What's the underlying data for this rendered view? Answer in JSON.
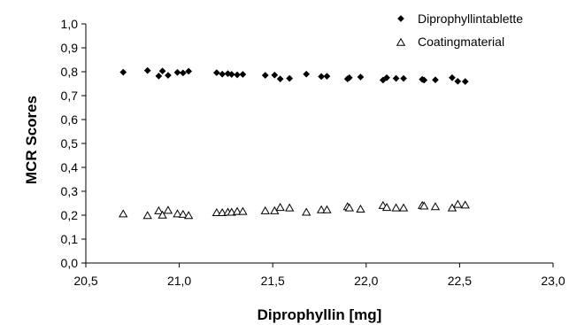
{
  "chart_data": {
    "type": "scatter",
    "xlabel": "Diprophyllin [mg]",
    "ylabel": "MCR Scores",
    "xlim": [
      20.5,
      23.0
    ],
    "ylim": [
      0.0,
      1.0
    ],
    "x_ticks": [
      "20,5",
      "21,0",
      "21,5",
      "22,0",
      "22,5",
      "23,0"
    ],
    "y_ticks": [
      "0,0",
      "0,1",
      "0,2",
      "0,3",
      "0,4",
      "0,5",
      "0,6",
      "0,7",
      "0,8",
      "0,9",
      "1,0"
    ],
    "grid": false,
    "legend_position": "top-right",
    "series": [
      {
        "name": "Diprophyllintablette",
        "marker": "diamond",
        "color": "#000000",
        "points": [
          [
            20.7,
            0.798
          ],
          [
            20.83,
            0.805
          ],
          [
            20.89,
            0.782
          ],
          [
            20.91,
            0.803
          ],
          [
            20.94,
            0.785
          ],
          [
            20.99,
            0.797
          ],
          [
            21.02,
            0.795
          ],
          [
            21.05,
            0.802
          ],
          [
            21.2,
            0.796
          ],
          [
            21.23,
            0.79
          ],
          [
            21.26,
            0.792
          ],
          [
            21.28,
            0.789
          ],
          [
            21.31,
            0.787
          ],
          [
            21.34,
            0.789
          ],
          [
            21.46,
            0.785
          ],
          [
            21.51,
            0.786
          ],
          [
            21.54,
            0.77
          ],
          [
            21.59,
            0.772
          ],
          [
            21.68,
            0.79
          ],
          [
            21.76,
            0.78
          ],
          [
            21.79,
            0.781
          ],
          [
            21.9,
            0.77
          ],
          [
            21.91,
            0.775
          ],
          [
            21.97,
            0.778
          ],
          [
            22.09,
            0.765
          ],
          [
            22.11,
            0.775
          ],
          [
            22.16,
            0.772
          ],
          [
            22.2,
            0.772
          ],
          [
            22.3,
            0.768
          ],
          [
            22.31,
            0.765
          ],
          [
            22.37,
            0.766
          ],
          [
            22.46,
            0.775
          ],
          [
            22.49,
            0.76
          ],
          [
            22.53,
            0.759
          ]
        ]
      },
      {
        "name": "Coatingmaterial",
        "marker": "open-triangle",
        "color": "#000000",
        "points": [
          [
            20.7,
            0.205
          ],
          [
            20.83,
            0.198
          ],
          [
            20.89,
            0.218
          ],
          [
            20.91,
            0.2
          ],
          [
            20.94,
            0.22
          ],
          [
            20.99,
            0.205
          ],
          [
            21.02,
            0.203
          ],
          [
            21.05,
            0.198
          ],
          [
            21.2,
            0.21
          ],
          [
            21.23,
            0.21
          ],
          [
            21.26,
            0.212
          ],
          [
            21.28,
            0.212
          ],
          [
            21.31,
            0.215
          ],
          [
            21.34,
            0.215
          ],
          [
            21.46,
            0.218
          ],
          [
            21.51,
            0.218
          ],
          [
            21.54,
            0.232
          ],
          [
            21.59,
            0.23
          ],
          [
            21.68,
            0.212
          ],
          [
            21.76,
            0.222
          ],
          [
            21.79,
            0.222
          ],
          [
            21.9,
            0.235
          ],
          [
            21.91,
            0.23
          ],
          [
            21.97,
            0.225
          ],
          [
            22.09,
            0.24
          ],
          [
            22.11,
            0.232
          ],
          [
            22.16,
            0.23
          ],
          [
            22.2,
            0.23
          ],
          [
            22.3,
            0.24
          ],
          [
            22.31,
            0.238
          ],
          [
            22.37,
            0.235
          ],
          [
            22.46,
            0.23
          ],
          [
            22.49,
            0.245
          ],
          [
            22.53,
            0.242
          ]
        ]
      }
    ]
  }
}
